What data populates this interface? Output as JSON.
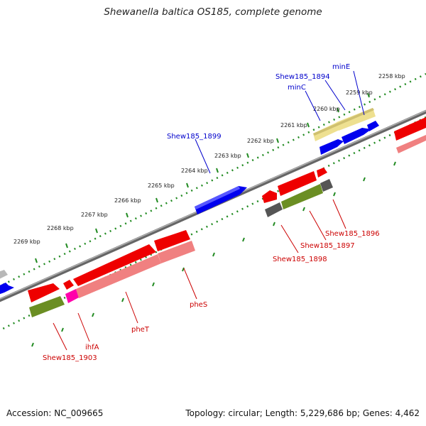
{
  "title": "Shewanella baltica OS185, complete genome",
  "accession": "Accession: NC_009665",
  "topology": "Topology: circular; Length: 5,229,686 bp; Genes: 4,462",
  "colors": {
    "backbone": "#808080",
    "tick": "#228b22",
    "forward_cds": "#0000ee",
    "reverse_cds": "#ee0000",
    "reverse_cds_light": "#f08080",
    "trna_like": "#6b8e23",
    "gray_feature": "#707070",
    "yellow_feature": "#eee090",
    "magenta_feature": "#ff00aa",
    "forward_label": "#0000cc",
    "reverse_label": "#cc0000"
  },
  "kbp_labels": [
    "2258 kbp",
    "2259 kbp",
    "2260 kbp",
    "2261 kbp",
    "2262 kbp",
    "2263 kbp",
    "2264 kbp",
    "2265 kbp",
    "2266 kbp",
    "2267 kbp",
    "2268 kbp",
    "2269 kbp"
  ],
  "labels": {
    "minE": "minE",
    "shew1894": "Shew185_1894",
    "minC": "minC",
    "shew1899": "Shew185_1899",
    "shew1896": "Shew185_1896",
    "shew1897": "Shew185_1897",
    "shew1898": "Shew185_1898",
    "pheS": "pheS",
    "pheT": "pheT",
    "ihfA": "ihfA",
    "shew1903": "Shew185_1903"
  }
}
